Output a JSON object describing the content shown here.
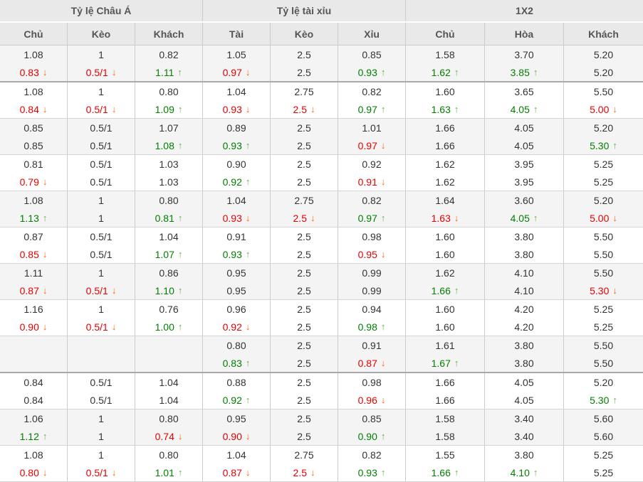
{
  "header": {
    "groups": [
      {
        "label": "Tỷ lệ Châu Á",
        "columns": [
          "Chủ",
          "Kèo",
          "Khách"
        ]
      },
      {
        "label": "Tỷ lệ tài xỉu",
        "columns": [
          "Tài",
          "Kèo",
          "Xỉu"
        ]
      },
      {
        "label": "1X2",
        "columns": [
          "Chủ",
          "Hòa",
          "Khách"
        ]
      }
    ]
  },
  "icons": {
    "up_arrow": "↑",
    "down_arrow": "↓"
  },
  "colors": {
    "up_text": "#008000",
    "up_arrow": "#6ab04c",
    "down_text": "#e60000",
    "down_arrow": "#ff6600",
    "header_bg": "#e9e9e9",
    "stripe_bg": "#f4f4f4"
  },
  "rows": [
    {
      "sep": true,
      "cells": [
        {
          "a": "1.08",
          "b": "0.83",
          "t": "down"
        },
        {
          "a": "1",
          "b": "0.5/1",
          "t": "down"
        },
        {
          "a": "0.82",
          "b": "1.11",
          "t": "up"
        },
        {
          "a": "1.05",
          "b": "0.97",
          "t": "down"
        },
        {
          "a": "2.5",
          "b": "2.5"
        },
        {
          "a": "0.85",
          "b": "0.93",
          "t": "up"
        },
        {
          "a": "1.58",
          "b": "1.62",
          "t": "up"
        },
        {
          "a": "3.70",
          "b": "3.85",
          "t": "up"
        },
        {
          "a": "5.20",
          "b": "5.20"
        }
      ]
    },
    {
      "sep": false,
      "cells": [
        {
          "a": "1.08",
          "b": "0.84",
          "t": "down"
        },
        {
          "a": "1",
          "b": "0.5/1",
          "t": "down"
        },
        {
          "a": "0.80",
          "b": "1.09",
          "t": "up"
        },
        {
          "a": "1.04",
          "b": "0.93",
          "t": "down"
        },
        {
          "a": "2.75",
          "b": "2.5",
          "t": "down"
        },
        {
          "a": "0.82",
          "b": "0.97",
          "t": "up"
        },
        {
          "a": "1.60",
          "b": "1.63",
          "t": "up"
        },
        {
          "a": "3.65",
          "b": "4.05",
          "t": "up"
        },
        {
          "a": "5.50",
          "b": "5.00",
          "t": "down"
        }
      ]
    },
    {
      "sep": false,
      "cells": [
        {
          "a": "0.85",
          "b": "0.85"
        },
        {
          "a": "0.5/1",
          "b": "0.5/1"
        },
        {
          "a": "1.07",
          "b": "1.08",
          "t": "up"
        },
        {
          "a": "0.89",
          "b": "0.93",
          "t": "up"
        },
        {
          "a": "2.5",
          "b": "2.5"
        },
        {
          "a": "1.01",
          "b": "0.97",
          "t": "down"
        },
        {
          "a": "1.66",
          "b": "1.66"
        },
        {
          "a": "4.05",
          "b": "4.05"
        },
        {
          "a": "5.20",
          "b": "5.30",
          "t": "up"
        }
      ]
    },
    {
      "sep": false,
      "cells": [
        {
          "a": "0.81",
          "b": "0.79",
          "t": "down"
        },
        {
          "a": "0.5/1",
          "b": "0.5/1"
        },
        {
          "a": "1.03",
          "b": "1.03"
        },
        {
          "a": "0.90",
          "b": "0.92",
          "t": "up"
        },
        {
          "a": "2.5",
          "b": "2.5"
        },
        {
          "a": "0.92",
          "b": "0.91",
          "t": "down"
        },
        {
          "a": "1.62",
          "b": "1.62"
        },
        {
          "a": "3.95",
          "b": "3.95"
        },
        {
          "a": "5.25",
          "b": "5.25"
        }
      ]
    },
    {
      "sep": false,
      "cells": [
        {
          "a": "1.08",
          "b": "1.13",
          "t": "up"
        },
        {
          "a": "1",
          "b": "1"
        },
        {
          "a": "0.80",
          "b": "0.81",
          "t": "up"
        },
        {
          "a": "1.04",
          "b": "0.93",
          "t": "down"
        },
        {
          "a": "2.75",
          "b": "2.5",
          "t": "down"
        },
        {
          "a": "0.82",
          "b": "0.97",
          "t": "up"
        },
        {
          "a": "1.64",
          "b": "1.63",
          "t": "down"
        },
        {
          "a": "3.60",
          "b": "4.05",
          "t": "up"
        },
        {
          "a": "5.20",
          "b": "5.00",
          "t": "down"
        }
      ]
    },
    {
      "sep": false,
      "cells": [
        {
          "a": "0.87",
          "b": "0.85",
          "t": "down"
        },
        {
          "a": "0.5/1",
          "b": "0.5/1"
        },
        {
          "a": "1.04",
          "b": "1.07",
          "t": "up"
        },
        {
          "a": "0.91",
          "b": "0.93",
          "t": "up"
        },
        {
          "a": "2.5",
          "b": "2.5"
        },
        {
          "a": "0.98",
          "b": "0.95",
          "t": "down"
        },
        {
          "a": "1.60",
          "b": "1.60"
        },
        {
          "a": "3.80",
          "b": "3.80"
        },
        {
          "a": "5.50",
          "b": "5.50"
        }
      ]
    },
    {
      "sep": false,
      "cells": [
        {
          "a": "1.11",
          "b": "0.87",
          "t": "down"
        },
        {
          "a": "1",
          "b": "0.5/1",
          "t": "down"
        },
        {
          "a": "0.86",
          "b": "1.10",
          "t": "up"
        },
        {
          "a": "0.95",
          "b": "0.95"
        },
        {
          "a": "2.5",
          "b": "2.5"
        },
        {
          "a": "0.99",
          "b": "0.99"
        },
        {
          "a": "1.62",
          "b": "1.66",
          "t": "up"
        },
        {
          "a": "4.10",
          "b": "4.10"
        },
        {
          "a": "5.50",
          "b": "5.30",
          "t": "down"
        }
      ]
    },
    {
      "sep": false,
      "cells": [
        {
          "a": "1.16",
          "b": "0.90",
          "t": "down"
        },
        {
          "a": "1",
          "b": "0.5/1",
          "t": "down"
        },
        {
          "a": "0.76",
          "b": "1.00",
          "t": "up"
        },
        {
          "a": "0.96",
          "b": "0.92",
          "t": "down"
        },
        {
          "a": "2.5",
          "b": "2.5"
        },
        {
          "a": "0.94",
          "b": "0.98",
          "t": "up"
        },
        {
          "a": "1.60",
          "b": "1.60"
        },
        {
          "a": "4.20",
          "b": "4.20"
        },
        {
          "a": "5.25",
          "b": "5.25"
        }
      ]
    },
    {
      "sep": true,
      "cells": [
        {
          "a": "",
          "b": ""
        },
        {
          "a": "",
          "b": ""
        },
        {
          "a": "",
          "b": ""
        },
        {
          "a": "0.80",
          "b": "0.83",
          "t": "up"
        },
        {
          "a": "2.5",
          "b": "2.5"
        },
        {
          "a": "0.91",
          "b": "0.87",
          "t": "down"
        },
        {
          "a": "1.61",
          "b": "1.67",
          "t": "up"
        },
        {
          "a": "3.80",
          "b": "3.80"
        },
        {
          "a": "5.50",
          "b": "5.50"
        }
      ]
    },
    {
      "sep": false,
      "cells": [
        {
          "a": "0.84",
          "b": "0.84"
        },
        {
          "a": "0.5/1",
          "b": "0.5/1"
        },
        {
          "a": "1.04",
          "b": "1.04"
        },
        {
          "a": "0.88",
          "b": "0.92",
          "t": "up"
        },
        {
          "a": "2.5",
          "b": "2.5"
        },
        {
          "a": "0.98",
          "b": "0.96",
          "t": "down"
        },
        {
          "a": "1.66",
          "b": "1.66"
        },
        {
          "a": "4.05",
          "b": "4.05"
        },
        {
          "a": "5.20",
          "b": "5.30",
          "t": "up"
        }
      ]
    },
    {
      "sep": false,
      "cells": [
        {
          "a": "1.06",
          "b": "1.12",
          "t": "up"
        },
        {
          "a": "1",
          "b": "1"
        },
        {
          "a": "0.80",
          "b": "0.74",
          "t": "down"
        },
        {
          "a": "0.95",
          "b": "0.90",
          "t": "down"
        },
        {
          "a": "2.5",
          "b": "2.5"
        },
        {
          "a": "0.85",
          "b": "0.90",
          "t": "up"
        },
        {
          "a": "1.58",
          "b": "1.58"
        },
        {
          "a": "3.40",
          "b": "3.40"
        },
        {
          "a": "5.60",
          "b": "5.60"
        }
      ]
    },
    {
      "sep": false,
      "cells": [
        {
          "a": "1.08",
          "b": "0.80",
          "t": "down"
        },
        {
          "a": "1",
          "b": "0.5/1",
          "t": "down"
        },
        {
          "a": "0.80",
          "b": "1.01",
          "t": "up"
        },
        {
          "a": "1.04",
          "b": "0.87",
          "t": "down"
        },
        {
          "a": "2.75",
          "b": "2.5",
          "t": "down"
        },
        {
          "a": "0.82",
          "b": "0.93",
          "t": "up"
        },
        {
          "a": "1.55",
          "b": "1.66",
          "t": "up"
        },
        {
          "a": "3.80",
          "b": "4.10",
          "t": "up"
        },
        {
          "a": "5.25",
          "b": "5.25"
        }
      ]
    }
  ]
}
